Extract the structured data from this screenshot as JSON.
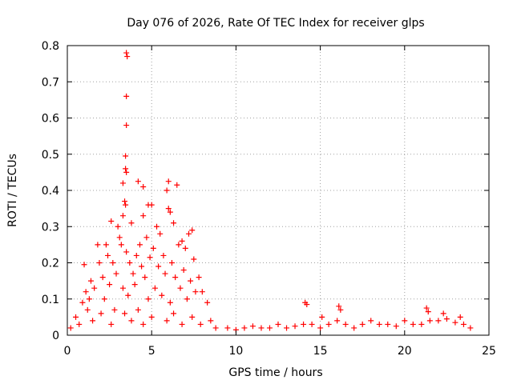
{
  "chart_data": {
    "type": "scatter",
    "title": "Day 076 of 2026, Rate Of TEC Index for receiver glps",
    "xlabel": "GPS time / hours",
    "ylabel": "ROTI / TECUs",
    "xlim": [
      0,
      25
    ],
    "ylim": [
      0,
      0.8
    ],
    "xticks": [
      0,
      5,
      10,
      15,
      20,
      25
    ],
    "yticks": [
      0,
      0.1,
      0.2,
      0.3,
      0.4,
      0.5,
      0.6,
      0.7,
      0.8
    ],
    "xtick_labels": [
      "0",
      "5",
      "10",
      "15",
      "20",
      "25"
    ],
    "ytick_labels": [
      "0",
      "0.1",
      "0.2",
      "0.3",
      "0.4",
      "0.5",
      "0.6",
      "0.7",
      "0.8"
    ],
    "grid": true,
    "marker": "+",
    "color": "#ff0000",
    "series": [
      {
        "name": "ROTI",
        "points": [
          [
            3.5,
            0.78
          ],
          [
            3.55,
            0.77
          ],
          [
            3.5,
            0.66
          ],
          [
            3.5,
            0.58
          ],
          [
            3.45,
            0.495
          ],
          [
            3.45,
            0.46
          ],
          [
            3.5,
            0.45
          ],
          [
            3.3,
            0.42
          ],
          [
            4.2,
            0.425
          ],
          [
            4.5,
            0.41
          ],
          [
            6.0,
            0.425
          ],
          [
            6.5,
            0.415
          ],
          [
            5.9,
            0.4
          ],
          [
            3.4,
            0.37
          ],
          [
            3.45,
            0.36
          ],
          [
            4.8,
            0.36
          ],
          [
            5.0,
            0.36
          ],
          [
            6.0,
            0.35
          ],
          [
            6.1,
            0.34
          ],
          [
            4.5,
            0.33
          ],
          [
            3.3,
            0.33
          ],
          [
            2.6,
            0.315
          ],
          [
            3.0,
            0.3
          ],
          [
            3.8,
            0.31
          ],
          [
            5.3,
            0.3
          ],
          [
            6.3,
            0.31
          ],
          [
            7.2,
            0.28
          ],
          [
            7.4,
            0.29
          ],
          [
            3.1,
            0.27
          ],
          [
            4.7,
            0.27
          ],
          [
            5.5,
            0.28
          ],
          [
            6.8,
            0.26
          ],
          [
            1.8,
            0.25
          ],
          [
            2.3,
            0.25
          ],
          [
            3.2,
            0.25
          ],
          [
            4.3,
            0.25
          ],
          [
            5.1,
            0.24
          ],
          [
            6.6,
            0.25
          ],
          [
            7.0,
            0.24
          ],
          [
            2.4,
            0.22
          ],
          [
            3.5,
            0.23
          ],
          [
            4.1,
            0.22
          ],
          [
            4.9,
            0.215
          ],
          [
            5.7,
            0.22
          ],
          [
            6.2,
            0.2
          ],
          [
            7.5,
            0.21
          ],
          [
            1.0,
            0.195
          ],
          [
            1.9,
            0.2
          ],
          [
            2.7,
            0.2
          ],
          [
            3.7,
            0.2
          ],
          [
            4.4,
            0.19
          ],
          [
            5.4,
            0.19
          ],
          [
            6.9,
            0.18
          ],
          [
            7.8,
            0.16
          ],
          [
            1.4,
            0.15
          ],
          [
            2.1,
            0.16
          ],
          [
            2.9,
            0.17
          ],
          [
            3.9,
            0.17
          ],
          [
            4.6,
            0.16
          ],
          [
            5.8,
            0.17
          ],
          [
            6.4,
            0.16
          ],
          [
            7.3,
            0.15
          ],
          [
            8.0,
            0.12
          ],
          [
            1.1,
            0.12
          ],
          [
            1.6,
            0.13
          ],
          [
            2.5,
            0.14
          ],
          [
            3.3,
            0.13
          ],
          [
            4.0,
            0.14
          ],
          [
            5.2,
            0.13
          ],
          [
            6.7,
            0.13
          ],
          [
            7.6,
            0.12
          ],
          [
            0.9,
            0.09
          ],
          [
            1.3,
            0.1
          ],
          [
            2.2,
            0.1
          ],
          [
            3.6,
            0.11
          ],
          [
            4.8,
            0.1
          ],
          [
            5.6,
            0.11
          ],
          [
            6.1,
            0.09
          ],
          [
            7.1,
            0.1
          ],
          [
            8.3,
            0.09
          ],
          [
            0.5,
            0.05
          ],
          [
            1.2,
            0.07
          ],
          [
            2.0,
            0.06
          ],
          [
            2.8,
            0.07
          ],
          [
            3.4,
            0.06
          ],
          [
            4.2,
            0.07
          ],
          [
            5.0,
            0.05
          ],
          [
            6.3,
            0.06
          ],
          [
            7.4,
            0.05
          ],
          [
            8.5,
            0.04
          ],
          [
            0.2,
            0.02
          ],
          [
            0.7,
            0.03
          ],
          [
            1.5,
            0.04
          ],
          [
            2.6,
            0.03
          ],
          [
            3.8,
            0.04
          ],
          [
            4.5,
            0.03
          ],
          [
            5.9,
            0.04
          ],
          [
            6.8,
            0.03
          ],
          [
            7.9,
            0.03
          ],
          [
            8.8,
            0.02
          ],
          [
            9.5,
            0.02
          ],
          [
            10.0,
            0.015
          ],
          [
            10.5,
            0.02
          ],
          [
            11.0,
            0.025
          ],
          [
            11.5,
            0.02
          ],
          [
            12.0,
            0.02
          ],
          [
            12.5,
            0.03
          ],
          [
            13.0,
            0.02
          ],
          [
            13.5,
            0.025
          ],
          [
            14.0,
            0.03
          ],
          [
            14.1,
            0.09
          ],
          [
            14.2,
            0.085
          ],
          [
            14.5,
            0.03
          ],
          [
            15.0,
            0.02
          ],
          [
            15.1,
            0.05
          ],
          [
            15.5,
            0.03
          ],
          [
            16.0,
            0.04
          ],
          [
            16.1,
            0.08
          ],
          [
            16.2,
            0.07
          ],
          [
            16.5,
            0.03
          ],
          [
            17.0,
            0.02
          ],
          [
            17.5,
            0.03
          ],
          [
            18.0,
            0.04
          ],
          [
            18.5,
            0.03
          ],
          [
            19.0,
            0.03
          ],
          [
            19.5,
            0.025
          ],
          [
            20.0,
            0.04
          ],
          [
            20.5,
            0.03
          ],
          [
            21.0,
            0.03
          ],
          [
            21.3,
            0.075
          ],
          [
            21.4,
            0.065
          ],
          [
            21.5,
            0.04
          ],
          [
            22.0,
            0.04
          ],
          [
            22.3,
            0.06
          ],
          [
            22.5,
            0.045
          ],
          [
            23.0,
            0.035
          ],
          [
            23.3,
            0.05
          ],
          [
            23.5,
            0.03
          ],
          [
            23.9,
            0.02
          ]
        ]
      }
    ]
  }
}
